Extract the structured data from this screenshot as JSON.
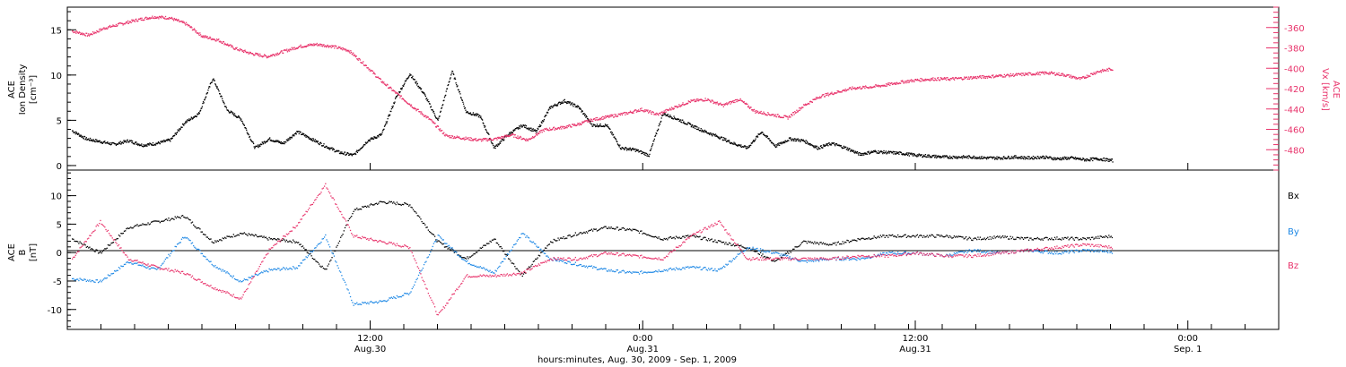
{
  "chart_data": [
    {
      "type": "scatter",
      "panel": "top",
      "ylabel_left": [
        "ACE",
        "Ion Density",
        "[cm⁻³]"
      ],
      "ylabel_right": [
        "ACE",
        "Vx [km/s]"
      ],
      "ylim_left": [
        -0.5,
        17.5
      ],
      "ylim_right": [
        -500,
        -340
      ],
      "yticks_left": [
        0,
        5,
        10,
        15
      ],
      "yticks_right": [
        -480,
        -460,
        -440,
        -420,
        -400,
        -380,
        -360
      ],
      "series": [
        {
          "color": "#000000",
          "axis": "left",
          "values": [
            [
              0,
              3.9
            ],
            [
              1,
              3.0
            ],
            [
              2,
              2.7
            ],
            [
              3,
              2.4
            ],
            [
              4,
              2.8
            ],
            [
              5,
              2.3
            ],
            [
              6,
              2.5
            ],
            [
              7,
              2.9
            ],
            [
              8,
              4.8
            ],
            [
              9,
              5.8
            ],
            [
              10,
              9.7
            ],
            [
              11,
              6.2
            ],
            [
              12,
              5.2
            ],
            [
              13,
              2.0
            ],
            [
              14,
              3.0
            ],
            [
              15,
              2.5
            ],
            [
              16,
              3.8
            ],
            [
              17,
              3.0
            ],
            [
              18,
              2.2
            ],
            [
              19,
              1.5
            ],
            [
              20,
              1.2
            ],
            [
              21,
              2.8
            ],
            [
              22,
              3.5
            ],
            [
              23,
              7.5
            ],
            [
              24,
              10.2
            ],
            [
              25,
              8.0
            ],
            [
              26,
              5.0
            ],
            [
              27,
              10.5
            ],
            [
              28,
              6.0
            ],
            [
              29,
              5.5
            ],
            [
              30,
              2.0
            ],
            [
              31,
              3.5
            ],
            [
              32,
              4.5
            ],
            [
              33,
              3.8
            ],
            [
              34,
              6.5
            ],
            [
              35,
              7.2
            ],
            [
              36,
              6.5
            ],
            [
              37,
              4.5
            ],
            [
              38,
              4.5
            ],
            [
              39,
              2.0
            ],
            [
              40,
              1.8
            ],
            [
              41,
              1.2
            ],
            [
              42,
              5.8
            ],
            [
              43,
              5.2
            ],
            [
              44,
              4.5
            ],
            [
              45,
              3.8
            ],
            [
              46,
              3.2
            ],
            [
              47,
              2.5
            ],
            [
              48,
              2.0
            ],
            [
              49,
              3.8
            ],
            [
              50,
              2.2
            ],
            [
              51,
              3.0
            ],
            [
              52,
              2.8
            ],
            [
              53,
              2.0
            ],
            [
              54,
              2.5
            ],
            [
              55,
              2.0
            ],
            [
              56,
              1.3
            ],
            [
              57,
              1.6
            ],
            [
              58,
              1.5
            ],
            [
              59,
              1.4
            ],
            [
              60,
              1.2
            ],
            [
              61,
              1.1
            ],
            [
              62,
              1.0
            ],
            [
              63,
              1.0
            ],
            [
              64,
              1.0
            ],
            [
              65,
              0.9
            ],
            [
              66,
              0.9
            ],
            [
              67,
              1.0
            ],
            [
              68,
              0.9
            ],
            [
              69,
              1.0
            ],
            [
              70,
              0.8
            ],
            [
              71,
              0.9
            ],
            [
              72,
              0.7
            ],
            [
              73,
              0.8
            ],
            [
              74,
              0.6
            ]
          ]
        },
        {
          "color": "#e8336b",
          "axis": "right",
          "values": [
            [
              0,
              -363
            ],
            [
              1,
              -367
            ],
            [
              2,
              -360
            ],
            [
              3,
              -356
            ],
            [
              4,
              -352
            ],
            [
              5,
              -349
            ],
            [
              6,
              -350
            ],
            [
              7,
              -356
            ],
            [
              8,
              -368
            ],
            [
              9,
              -372
            ],
            [
              10,
              -380
            ],
            [
              11,
              -385
            ],
            [
              12,
              -388
            ],
            [
              13,
              -383
            ],
            [
              14,
              -378
            ],
            [
              15,
              -376
            ],
            [
              16,
              -378
            ],
            [
              17,
              -382
            ],
            [
              18,
              -396
            ],
            [
              19,
              -412
            ],
            [
              20,
              -425
            ],
            [
              21,
              -438
            ],
            [
              22,
              -450
            ],
            [
              23,
              -466
            ],
            [
              24,
              -468
            ],
            [
              25,
              -470
            ],
            [
              26,
              -469
            ],
            [
              27,
              -465
            ],
            [
              28,
              -470
            ],
            [
              29,
              -460
            ],
            [
              30,
              -458
            ],
            [
              31,
              -455
            ],
            [
              32,
              -450
            ],
            [
              33,
              -447
            ],
            [
              34,
              -444
            ],
            [
              35,
              -440
            ],
            [
              36,
              -445
            ],
            [
              37,
              -438
            ],
            [
              38,
              -432
            ],
            [
              39,
              -430
            ],
            [
              40,
              -436
            ],
            [
              41,
              -430
            ],
            [
              42,
              -442
            ],
            [
              43,
              -445
            ],
            [
              44,
              -448
            ],
            [
              45,
              -436
            ],
            [
              46,
              -427
            ],
            [
              47,
              -423
            ],
            [
              48,
              -419
            ],
            [
              49,
              -418
            ],
            [
              50,
              -416
            ],
            [
              51,
              -413
            ],
            [
              52,
              -411
            ],
            [
              53,
              -410
            ],
            [
              54,
              -410
            ],
            [
              55,
              -409
            ],
            [
              56,
              -408
            ],
            [
              57,
              -407
            ],
            [
              58,
              -406
            ],
            [
              59,
              -405
            ],
            [
              60,
              -404
            ],
            [
              61,
              -406
            ],
            [
              62,
              -410
            ],
            [
              63,
              -403
            ],
            [
              64,
              -400
            ]
          ]
        }
      ],
      "xlim": [
        -2.5,
        92
      ]
    },
    {
      "type": "scatter",
      "panel": "bottom",
      "ylabel_left": [
        "ACE",
        "B",
        "[nT]"
      ],
      "ylim": [
        -13.5,
        14.5
      ],
      "yticks": [
        -10,
        -5,
        0,
        5,
        10
      ],
      "legend": [
        "Bx",
        "By",
        "Bz"
      ],
      "series": [
        {
          "name": "Bx",
          "color": "#000000",
          "values": [
            [
              0,
              2.5
            ],
            [
              2,
              0
            ],
            [
              4,
              4.5
            ],
            [
              6,
              5.5
            ],
            [
              8,
              6.5
            ],
            [
              10,
              2.0
            ],
            [
              12,
              3.5
            ],
            [
              14,
              2.5
            ],
            [
              16,
              2.0
            ],
            [
              18,
              -3.0
            ],
            [
              20,
              7.5
            ],
            [
              22,
              9.0
            ],
            [
              24,
              8.5
            ],
            [
              26,
              2.0
            ],
            [
              28,
              -1.0
            ],
            [
              30,
              2.5
            ],
            [
              32,
              -4.0
            ],
            [
              34,
              2.0
            ],
            [
              36,
              3.5
            ],
            [
              38,
              4.5
            ],
            [
              40,
              4.0
            ],
            [
              42,
              2.5
            ],
            [
              44,
              3.0
            ],
            [
              46,
              2.0
            ],
            [
              48,
              1.0
            ],
            [
              50,
              -1.5
            ],
            [
              52,
              2.0
            ],
            [
              54,
              1.5
            ],
            [
              56,
              2.5
            ],
            [
              58,
              3.0
            ],
            [
              60,
              3.0
            ],
            [
              62,
              3.0
            ],
            [
              64,
              2.5
            ],
            [
              66,
              2.8
            ],
            [
              68,
              2.5
            ],
            [
              70,
              2.6
            ],
            [
              72,
              2.5
            ],
            [
              74,
              3.0
            ]
          ]
        },
        {
          "name": "By",
          "color": "#1e88e5",
          "values": [
            [
              0,
              -4.5
            ],
            [
              2,
              -5.0
            ],
            [
              4,
              -1.5
            ],
            [
              6,
              -3.0
            ],
            [
              8,
              3.0
            ],
            [
              10,
              -2.0
            ],
            [
              12,
              -5.0
            ],
            [
              14,
              -3.0
            ],
            [
              16,
              -2.5
            ],
            [
              18,
              3.0
            ],
            [
              20,
              -9.0
            ],
            [
              22,
              -8.5
            ],
            [
              24,
              -7.0
            ],
            [
              26,
              3.0
            ],
            [
              28,
              -1.5
            ],
            [
              30,
              -3.5
            ],
            [
              32,
              3.5
            ],
            [
              34,
              -1.0
            ],
            [
              36,
              -2.0
            ],
            [
              38,
              -3.0
            ],
            [
              40,
              -3.5
            ],
            [
              42,
              -3.0
            ],
            [
              44,
              -2.5
            ],
            [
              46,
              -3.0
            ],
            [
              48,
              1.0
            ],
            [
              50,
              0
            ],
            [
              52,
              -1.5
            ],
            [
              54,
              -1.0
            ],
            [
              56,
              -1.0
            ],
            [
              58,
              0
            ],
            [
              60,
              0
            ],
            [
              62,
              -0.5
            ],
            [
              64,
              0.5
            ],
            [
              66,
              0
            ],
            [
              68,
              0.5
            ],
            [
              70,
              0
            ],
            [
              72,
              0.5
            ],
            [
              74,
              0.2
            ]
          ]
        },
        {
          "name": "Bz",
          "color": "#e8336b",
          "values": [
            [
              0,
              -1.0
            ],
            [
              2,
              5.5
            ],
            [
              4,
              -1.0
            ],
            [
              6,
              -2.5
            ],
            [
              8,
              -3.5
            ],
            [
              10,
              -6.0
            ],
            [
              12,
              -8.0
            ],
            [
              14,
              0.5
            ],
            [
              16,
              5.0
            ],
            [
              18,
              12.0
            ],
            [
              20,
              3.0
            ],
            [
              22,
              2.0
            ],
            [
              24,
              1.0
            ],
            [
              26,
              -11.0
            ],
            [
              28,
              -4.0
            ],
            [
              30,
              -4.0
            ],
            [
              32,
              -3.5
            ],
            [
              34,
              -1.0
            ],
            [
              36,
              -1.0
            ],
            [
              38,
              0
            ],
            [
              40,
              -0.5
            ],
            [
              42,
              -1.0
            ],
            [
              44,
              3.0
            ],
            [
              46,
              5.5
            ],
            [
              48,
              -1.0
            ],
            [
              50,
              -1.0
            ],
            [
              52,
              -1.0
            ],
            [
              54,
              -1.0
            ],
            [
              56,
              -0.5
            ],
            [
              58,
              -0.5
            ],
            [
              60,
              0
            ],
            [
              62,
              -0.5
            ],
            [
              64,
              -0.5
            ],
            [
              66,
              0
            ],
            [
              68,
              0.5
            ],
            [
              70,
              1.0
            ],
            [
              72,
              1.5
            ],
            [
              74,
              1.0
            ]
          ]
        }
      ]
    }
  ],
  "xaxis": {
    "ticks": [
      {
        "pos": 0.25,
        "label1": "12:00",
        "label2": "Aug.30"
      },
      {
        "pos": 0.5,
        "label1": "0:00",
        "label2": "Aug.31"
      },
      {
        "pos": 0.75,
        "label1": "12:00",
        "label2": "Aug.31"
      },
      {
        "pos": 1.0,
        "label1": "0:00",
        "label2": "Sep. 1"
      }
    ],
    "title": "hours:minutes, Aug. 30, 2009 - Sep. 1, 2009"
  }
}
